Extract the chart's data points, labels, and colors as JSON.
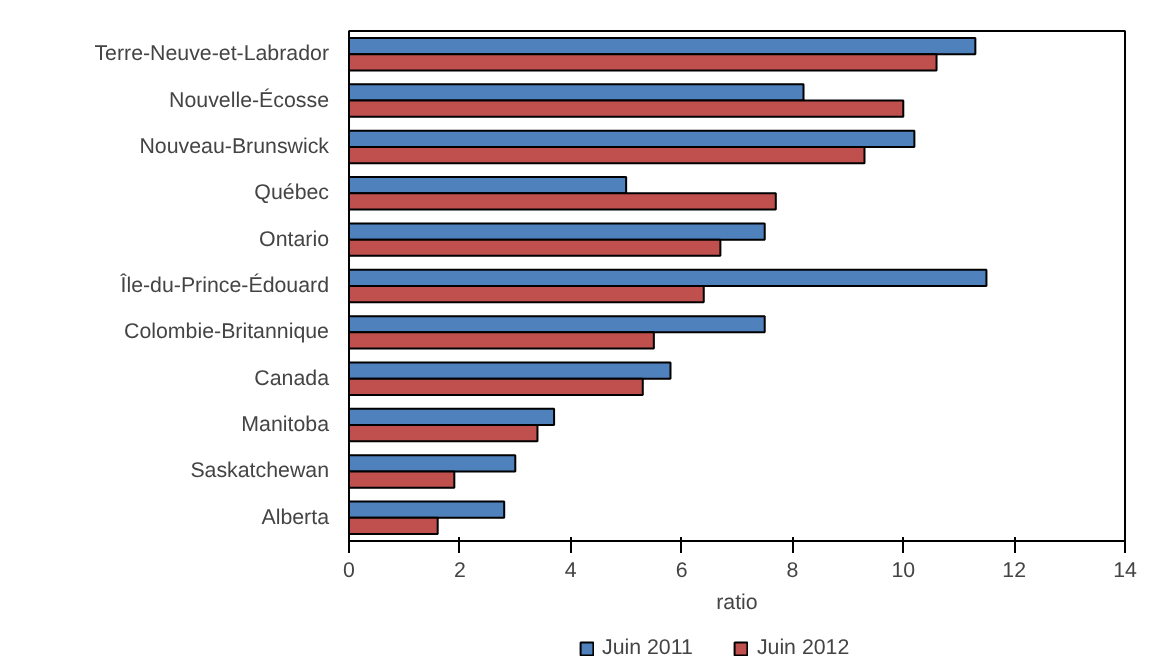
{
  "chart_data": {
    "type": "bar",
    "orientation": "horizontal",
    "xlabel": "ratio",
    "categories": [
      "Terre-Neuve-et-Labrador",
      "Nouvelle-Écosse",
      "Nouveau-Brunswick",
      "Québec",
      "Ontario",
      "Île-du-Prince-Édouard",
      "Colombie-Britannique",
      "Canada",
      "Manitoba",
      "Saskatchewan",
      "Alberta"
    ],
    "series": [
      {
        "name": "Juin 2011",
        "color": "#4f81bd",
        "values": [
          11.3,
          8.2,
          10.2,
          5.0,
          7.5,
          11.5,
          7.5,
          5.8,
          3.7,
          3.0,
          2.8
        ]
      },
      {
        "name": "Juin 2012",
        "color": "#c0504d",
        "values": [
          10.6,
          10.0,
          9.3,
          7.7,
          6.7,
          6.4,
          5.5,
          5.3,
          3.4,
          1.9,
          1.6
        ]
      }
    ],
    "xlim": [
      0,
      14
    ],
    "xticks": [
      0,
      2,
      4,
      6,
      8,
      10,
      12,
      14
    ],
    "grid": false,
    "legend": "bottom"
  }
}
